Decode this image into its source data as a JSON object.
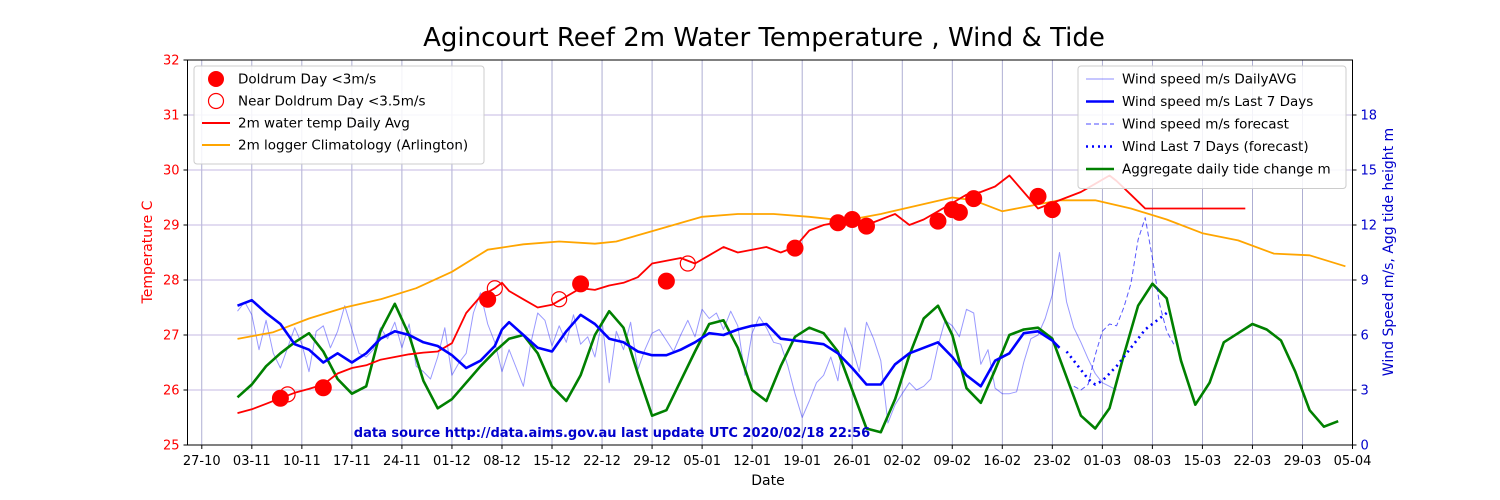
{
  "chart_data": {
    "type": "line",
    "title": "Agincourt Reef 2m Water Temperature , Wind & Tide",
    "xlabel": "Date",
    "ylabel_left": "Temperature  C",
    "ylabel_right": "Wind Speed m/s, Agg tide height m",
    "source_note": "data source http://data.aims.gov.au last update UTC 2020/02/18 22:56",
    "x_ticks": [
      "27-10",
      "03-11",
      "10-11",
      "17-11",
      "24-11",
      "01-12",
      "08-12",
      "15-12",
      "22-12",
      "29-12",
      "05-01",
      "12-01",
      "19-01",
      "26-01",
      "02-02",
      "09-02",
      "16-02",
      "23-02",
      "01-03",
      "08-03",
      "15-03",
      "22-03",
      "29-03",
      "05-04"
    ],
    "x_domain_days": [
      -2,
      161
    ],
    "y_left": {
      "min": 25,
      "max": 32,
      "ticks": [
        "25",
        "26",
        "27",
        "28",
        "29",
        "30",
        "31",
        "32"
      ]
    },
    "y_right": {
      "min": 0,
      "max": 21,
      "ticks": [
        "0",
        "3",
        "6",
        "9",
        "12",
        "15",
        "18"
      ]
    },
    "colors": {
      "temp": "#ff0000",
      "clim": "#ffa500",
      "wind": "#0000ff",
      "tide": "#008000",
      "source": "#0000cc"
    },
    "legend_left": [
      {
        "label": "Doldrum Day <3m/s",
        "kind": "filled-circle"
      },
      {
        "label": "Near Doldrum Day <3.5m/s",
        "kind": "open-circle"
      },
      {
        "label": "2m water temp Daily Avg",
        "kind": "red-line"
      },
      {
        "label": "2m logger Climatology (Arlington)",
        "kind": "orange-line"
      }
    ],
    "legend_right": [
      {
        "label": "Wind speed m/s DailyAVG",
        "kind": "thin-blue"
      },
      {
        "label": "Wind speed m/s Last 7 Days",
        "kind": "thick-blue"
      },
      {
        "label": "Wind speed m/s forecast",
        "kind": "dashed-blue"
      },
      {
        "label": "Wind Last 7 Days (forecast)",
        "kind": "dotted-blue"
      },
      {
        "label": "Aggregate daily tide change m",
        "kind": "green"
      }
    ],
    "series": [
      {
        "name": "2m water temp Daily Avg",
        "axis": "left",
        "x": [
          5,
          7,
          9,
          11,
          13,
          15,
          17,
          19,
          21,
          23,
          25,
          27,
          29,
          31,
          33,
          35,
          37,
          39,
          41,
          42,
          43,
          45,
          47,
          49,
          51,
          53,
          55,
          57,
          59,
          61,
          63,
          65,
          67,
          69,
          71,
          73,
          75,
          77,
          79,
          81,
          83,
          85,
          87,
          89,
          91,
          93,
          95,
          97,
          99,
          101,
          103,
          105,
          107,
          109,
          111,
          113,
          115,
          117,
          119,
          121,
          123,
          125,
          127,
          128,
          130,
          132,
          134,
          136,
          138,
          140,
          142,
          144,
          146
        ],
        "y": [
          25.58,
          25.65,
          25.75,
          25.85,
          25.95,
          26.02,
          26.1,
          26.3,
          26.4,
          26.45,
          26.55,
          26.6,
          26.65,
          26.68,
          26.7,
          26.85,
          27.4,
          27.7,
          27.85,
          27.95,
          27.8,
          27.65,
          27.5,
          27.55,
          27.7,
          27.85,
          27.82,
          27.9,
          27.95,
          28.05,
          28.3,
          28.35,
          28.4,
          28.3,
          28.45,
          28.6,
          28.5,
          28.55,
          28.6,
          28.5,
          28.6,
          28.9,
          29.0,
          29.05,
          29.1,
          29.0,
          29.1,
          29.2,
          29.0,
          29.1,
          29.25,
          29.4,
          29.55,
          29.6,
          29.7,
          29.9,
          29.6,
          29.3,
          29.4,
          29.5,
          29.6,
          29.75,
          29.9,
          29.8,
          29.55,
          29.3,
          29.3,
          29.3,
          29.3,
          29.3,
          29.3,
          29.3,
          29.3
        ]
      },
      {
        "name": "2m logger Climatology (Arlington)",
        "axis": "left",
        "x": [
          5,
          10,
          15,
          20,
          25,
          30,
          35,
          40,
          45,
          50,
          55,
          58,
          62,
          66,
          70,
          75,
          80,
          85,
          90,
          95,
          100,
          105,
          108,
          112,
          116,
          120,
          125,
          130,
          135,
          140,
          145,
          150,
          155,
          160
        ],
        "y": [
          26.93,
          27.05,
          27.3,
          27.5,
          27.65,
          27.85,
          28.15,
          28.55,
          28.65,
          28.7,
          28.66,
          28.7,
          28.85,
          29.0,
          29.15,
          29.2,
          29.2,
          29.15,
          29.08,
          29.2,
          29.35,
          29.5,
          29.45,
          29.25,
          29.35,
          29.45,
          29.45,
          29.3,
          29.1,
          28.85,
          28.72,
          28.48,
          28.45,
          28.25
        ]
      },
      {
        "name": "Wind speed m/s DailyAVG",
        "axis": "right",
        "x": [
          5,
          6,
          7,
          8,
          9,
          10,
          11,
          12,
          13,
          14,
          15,
          16,
          17,
          18,
          19,
          20,
          21,
          22,
          23,
          24,
          25,
          26,
          27,
          28,
          29,
          30,
          31,
          32,
          33,
          34,
          35,
          36,
          37,
          38,
          39,
          40,
          41,
          42,
          43,
          44,
          45,
          46,
          47,
          48,
          49,
          50,
          51,
          52,
          53,
          54,
          55,
          56,
          57,
          58,
          59,
          60,
          61,
          62,
          63,
          64,
          65,
          66,
          67,
          68,
          69,
          70,
          71,
          72,
          73,
          74,
          75,
          76,
          77,
          78,
          79,
          80,
          81,
          82,
          83,
          84,
          85,
          86,
          87,
          88,
          89,
          90,
          91,
          92,
          93,
          94,
          95,
          96,
          97,
          98,
          99,
          100,
          101,
          102,
          103,
          104,
          105,
          106,
          107,
          108,
          109,
          110,
          111,
          112,
          113,
          114,
          115,
          116,
          117,
          118,
          119,
          120,
          121,
          122,
          123,
          124,
          125,
          126,
          127,
          128
        ],
        "y": [
          7.3,
          7.8,
          7.1,
          5.2,
          6.8,
          5.0,
          4.2,
          5.3,
          6.4,
          5.5,
          4.0,
          6.2,
          6.5,
          5.3,
          6.2,
          7.6,
          6.3,
          5.0,
          4.8,
          5.2,
          6.4,
          5.8,
          6.7,
          5.3,
          6.6,
          4.3,
          4.0,
          3.6,
          4.8,
          6.4,
          3.8,
          4.5,
          5.0,
          7.2,
          8.3,
          6.6,
          5.6,
          4.0,
          5.2,
          4.2,
          3.2,
          5.5,
          7.2,
          6.8,
          5.4,
          6.5,
          5.6,
          7.1,
          5.5,
          5.9,
          4.8,
          6.8,
          3.4,
          6.2,
          5.2,
          6.7,
          4.1,
          5.2,
          6.1,
          6.3,
          5.7,
          5.1,
          6.0,
          6.8,
          5.9,
          7.4,
          6.9,
          7.2,
          6.3,
          7.3,
          6.5,
          3.8,
          6.1,
          7.0,
          6.4,
          5.6,
          5.5,
          4.3,
          2.8,
          1.5,
          2.4,
          3.4,
          3.8,
          4.8,
          3.5,
          6.4,
          5.3,
          4.0,
          6.7,
          5.8,
          4.6,
          1.2,
          2.2,
          2.8,
          3.4,
          3.0,
          3.2,
          3.6,
          5.4,
          6.8,
          6.5,
          5.9,
          7.4,
          7.2,
          4.4,
          5.2,
          3.1,
          2.8,
          2.8,
          2.9,
          4.5,
          5.8,
          6.0,
          6.9,
          8.2,
          10.5,
          7.8,
          6.4,
          5.6,
          4.7,
          3.9,
          3.4,
          3.2,
          3.0
        ]
      },
      {
        "name": "Wind speed m/s Last 7 Days",
        "axis": "right",
        "x": [
          5,
          7,
          9,
          11,
          13,
          15,
          17,
          19,
          21,
          23,
          25,
          27,
          29,
          31,
          33,
          35,
          37,
          39,
          41,
          42,
          43,
          45,
          47,
          49,
          51,
          53,
          55,
          57,
          59,
          61,
          63,
          65,
          67,
          69,
          71,
          73,
          75,
          77,
          79,
          81,
          83,
          85,
          87,
          89,
          91,
          93,
          95,
          97,
          99,
          101,
          103,
          105,
          107,
          109,
          111,
          113,
          115,
          117,
          119,
          120
        ],
        "y": [
          7.6,
          7.9,
          7.2,
          6.6,
          5.5,
          5.2,
          4.5,
          5.0,
          4.5,
          5.0,
          5.8,
          6.2,
          6.0,
          5.6,
          5.4,
          4.9,
          4.2,
          4.6,
          5.4,
          6.3,
          6.7,
          6.0,
          5.3,
          5.1,
          6.2,
          7.1,
          6.6,
          5.8,
          5.6,
          5.1,
          4.9,
          4.9,
          5.2,
          5.6,
          6.1,
          6.0,
          6.3,
          6.5,
          6.6,
          5.8,
          5.7,
          5.6,
          5.5,
          5.0,
          4.2,
          3.3,
          3.3,
          4.4,
          5.0,
          5.3,
          5.6,
          4.8,
          3.8,
          3.2,
          4.6,
          5.0,
          6.1,
          6.2,
          5.7,
          5.3
        ]
      },
      {
        "name": "Wind speed m/s forecast",
        "axis": "right",
        "x": [
          122,
          123,
          124,
          125,
          126,
          127,
          128,
          129,
          130,
          131,
          132,
          133,
          134,
          135,
          136
        ],
        "y": [
          3.2,
          3.0,
          3.3,
          4.9,
          6.2,
          6.6,
          6.5,
          7.5,
          8.8,
          11.2,
          12.4,
          10.2,
          7.7,
          6.2,
          5.5
        ]
      },
      {
        "name": "Wind Last 7 Days (forecast)",
        "axis": "right",
        "x": [
          121,
          122,
          123,
          124,
          125,
          126,
          127,
          128,
          129,
          130,
          131,
          132,
          133,
          134,
          135
        ],
        "y": [
          5.1,
          4.6,
          4.1,
          3.6,
          3.3,
          3.5,
          3.9,
          4.3,
          4.8,
          5.3,
          5.8,
          6.3,
          6.6,
          6.9,
          7.2
        ]
      },
      {
        "name": "Aggregate daily tide change m",
        "axis": "right",
        "x": [
          5,
          7,
          9,
          11,
          13,
          15,
          17,
          19,
          21,
          23,
          25,
          27,
          29,
          31,
          33,
          35,
          37,
          39,
          41,
          43,
          45,
          47,
          49,
          51,
          53,
          55,
          57,
          59,
          61,
          63,
          65,
          67,
          69,
          71,
          73,
          75,
          77,
          79,
          81,
          83,
          85,
          87,
          89,
          91,
          93,
          95,
          97,
          99,
          101,
          103,
          105,
          107,
          109,
          111,
          113,
          115,
          117,
          119,
          121,
          123,
          125,
          127,
          129,
          131,
          133,
          135,
          137,
          139,
          141,
          143,
          145,
          147,
          149,
          151,
          153,
          155,
          157,
          159
        ],
        "y": [
          2.6,
          3.3,
          4.3,
          5.0,
          5.6,
          6.1,
          5.1,
          3.6,
          2.8,
          3.2,
          6.2,
          7.7,
          6.0,
          3.5,
          2.0,
          2.5,
          3.4,
          4.3,
          5.1,
          5.8,
          6.0,
          5.0,
          3.2,
          2.4,
          3.8,
          6.0,
          7.3,
          6.4,
          3.9,
          1.6,
          1.9,
          3.5,
          5.1,
          6.6,
          6.8,
          5.3,
          3.0,
          2.4,
          4.3,
          5.9,
          6.4,
          6.1,
          5.1,
          3.0,
          0.9,
          0.7,
          2.5,
          4.9,
          6.9,
          7.6,
          6.0,
          3.1,
          2.3,
          4.1,
          6.0,
          6.3,
          6.4,
          5.8,
          3.7,
          1.6,
          0.9,
          2.0,
          4.9,
          7.6,
          8.8,
          8.0,
          4.6,
          2.2,
          3.4,
          5.6,
          6.1,
          6.6,
          6.3,
          5.7,
          4.0,
          1.9,
          1.0,
          1.3
        ]
      }
    ],
    "doldrum_days": [
      {
        "x": 11,
        "y": 25.85
      },
      {
        "x": 17,
        "y": 26.04
      },
      {
        "x": 40,
        "y": 27.65
      },
      {
        "x": 53,
        "y": 27.93
      },
      {
        "x": 65,
        "y": 27.98
      },
      {
        "x": 83,
        "y": 28.58
      },
      {
        "x": 89,
        "y": 29.04
      },
      {
        "x": 91,
        "y": 29.1
      },
      {
        "x": 93,
        "y": 28.98
      },
      {
        "x": 103,
        "y": 29.07
      },
      {
        "x": 105,
        "y": 29.28
      },
      {
        "x": 106,
        "y": 29.23
      },
      {
        "x": 108,
        "y": 29.48
      },
      {
        "x": 117,
        "y": 29.52
      },
      {
        "x": 119,
        "y": 29.28
      }
    ],
    "near_doldrum_days": [
      {
        "x": 12,
        "y": 25.92
      },
      {
        "x": 41,
        "y": 27.85
      },
      {
        "x": 50,
        "y": 27.65
      },
      {
        "x": 68,
        "y": 28.3
      }
    ]
  }
}
